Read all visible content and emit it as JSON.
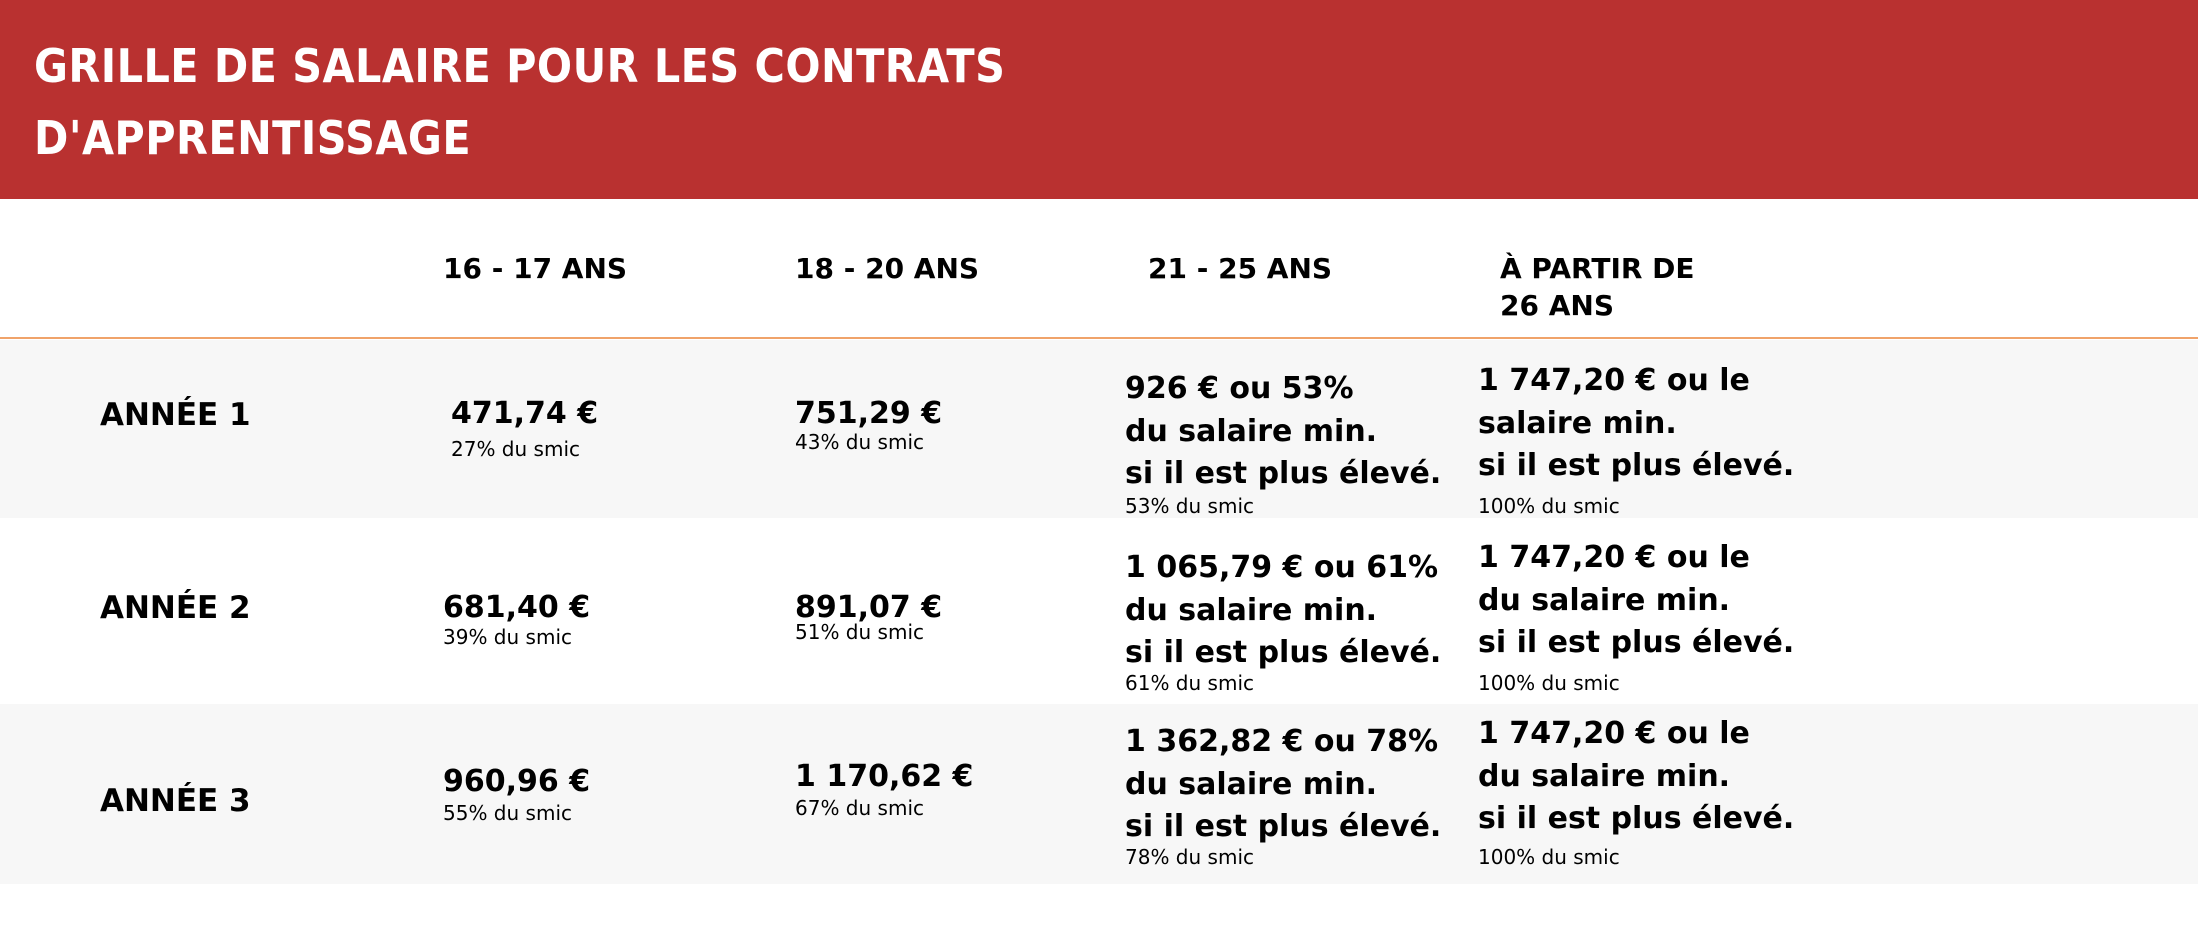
{
  "header": {
    "title_line1": "GRILLE DE SALAIRE POUR LES CONTRATS",
    "title_line2": "D'APPRENTISSAGE",
    "background_color": "#b93130"
  },
  "columns": {
    "c1": "16 - 17 ANS",
    "c2": "18 - 20 ANS",
    "c3": "21 - 25 ANS",
    "c4_line1": "À PARTIR DE",
    "c4_line2": "26 ANS"
  },
  "rows": [
    {
      "label": "ANNÉE 1",
      "c1_amount": "471,74 €",
      "c1_pct": "27% du smic",
      "c2_amount": "751,29 €",
      "c2_pct": "43% du smic",
      "c3_line1": "926 € ou 53%",
      "c3_line2": "du salaire min.",
      "c3_line3": "si il est plus élevé.",
      "c3_pct": "53% du smic",
      "c4_line1": "1 747,20 € ou le",
      "c4_line2": "salaire min.",
      "c4_line3": "si il est plus élevé.",
      "c4_pct": "100% du smic"
    },
    {
      "label": "ANNÉE 2",
      "c1_amount": "681,40 €",
      "c1_pct": "39% du smic",
      "c2_amount": "891,07 €",
      "c2_pct": "51% du smic",
      "c3_line1": "1 065,79 € ou 61%",
      "c3_line2": "du salaire min.",
      "c3_line3": "si il est plus élevé.",
      "c3_pct": "61% du smic",
      "c4_line1": "1 747,20 € ou le",
      "c4_line2": "du salaire min.",
      "c4_line3": "si il est plus élevé.",
      "c4_pct": "100% du smic"
    },
    {
      "label": "ANNÉE 3",
      "c1_amount": "960,96 €",
      "c1_pct": "55% du smic",
      "c2_amount": "1 170,62 €",
      "c2_pct": "67% du smic",
      "c3_line1": "1 362,82 € ou 78%",
      "c3_line2": "du salaire min.",
      "c3_line3": "si il est plus élevé.",
      "c3_pct": "78% du smic",
      "c4_line1": "1 747,20 € ou le",
      "c4_line2": "du salaire min.",
      "c4_line3": "si il est plus élevé.",
      "c4_pct": "100% du smic"
    }
  ]
}
